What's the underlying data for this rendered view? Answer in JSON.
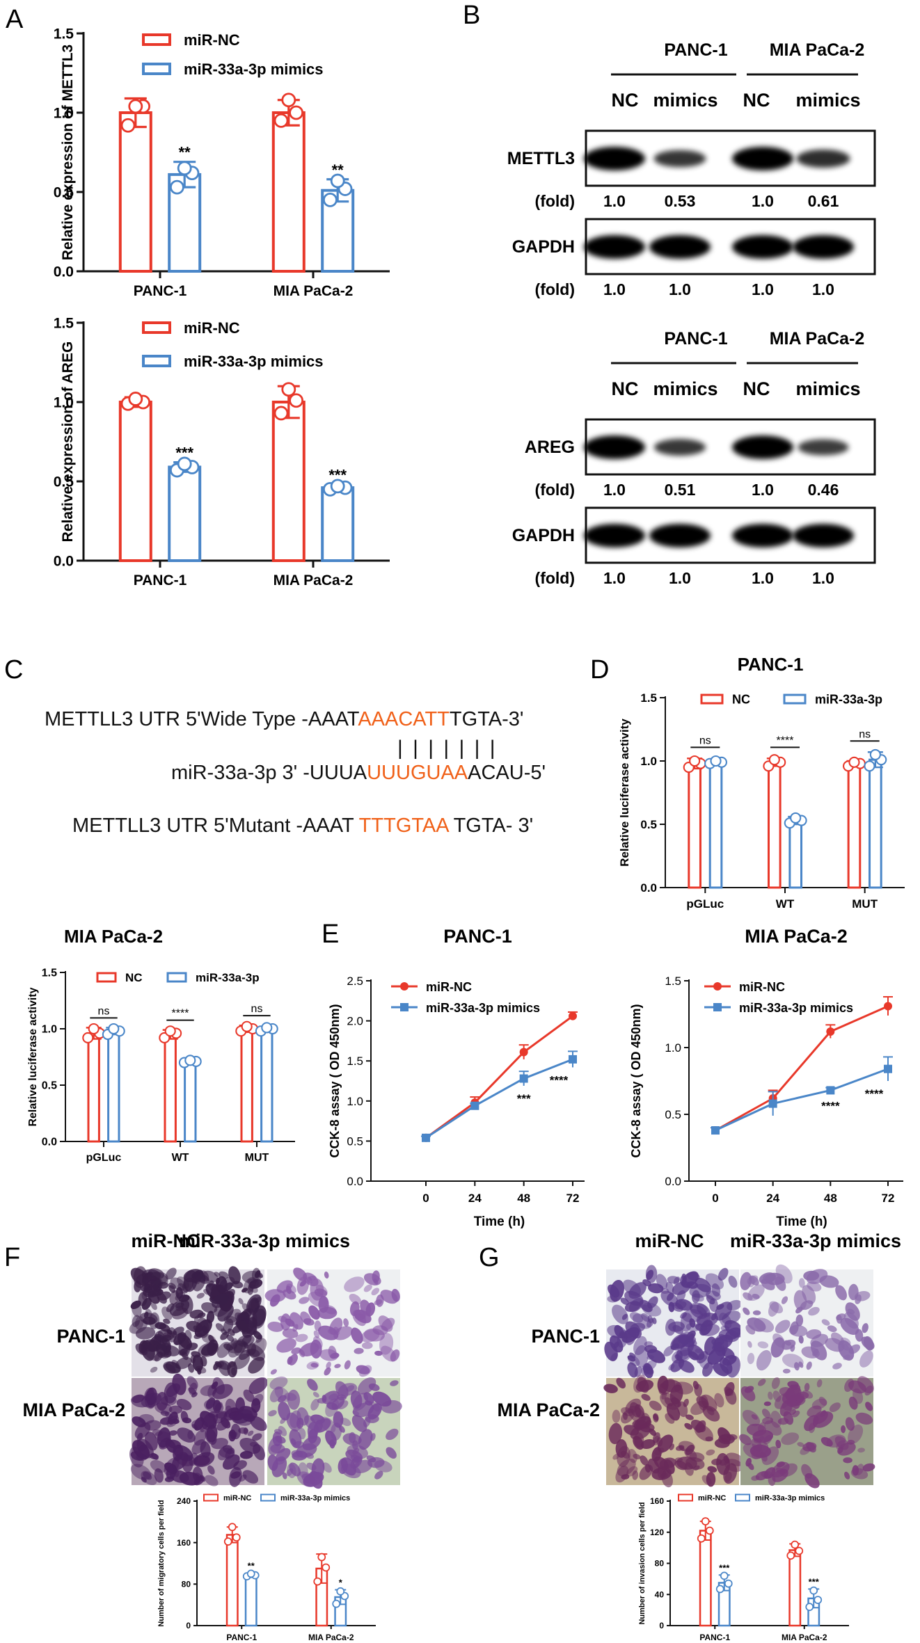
{
  "colors": {
    "nc": "#e8382a",
    "mimic": "#4a86c8",
    "text": "#111111",
    "orange": "#f06018",
    "axis": "#111111"
  },
  "panels": {
    "A": "A",
    "B": "B",
    "C": "C",
    "D": "D",
    "E": "E",
    "F": "F",
    "G": "G"
  },
  "panel_a": {
    "legend": [
      "miR-NC",
      "miR-33a-3p mimics"
    ],
    "chart_data": [
      {
        "type": "bar",
        "ylabel": "Relative expression of METTL3",
        "ylim": [
          0,
          1.5
        ],
        "yticks": [
          "0.0",
          "0.5",
          "1.0",
          "1.5"
        ],
        "categories": [
          "PANC-1",
          "MIA PaCa-2"
        ],
        "series": [
          {
            "name": "miR-NC",
            "values": [
              1.0,
              1.0
            ],
            "errors": [
              0.09,
              0.08
            ],
            "points": [
              [
                0.92,
                1.04,
                1.04
              ],
              [
                0.95,
                1.0,
                1.08
              ]
            ]
          },
          {
            "name": "miR-33a-3p mimics",
            "values": [
              0.61,
              0.51
            ],
            "errors": [
              0.08,
              0.07
            ],
            "points": [
              [
                0.53,
                0.62,
                0.65
              ],
              [
                0.45,
                0.52,
                0.57
              ]
            ]
          }
        ],
        "sig": [
          "**",
          "**"
        ]
      },
      {
        "type": "bar",
        "ylabel": "Relative expression of AREG",
        "ylim": [
          0,
          1.5
        ],
        "yticks": [
          "0.0",
          "0.5",
          "1.0",
          "1.5"
        ],
        "categories": [
          "PANC-1",
          "MIA PaCa-2"
        ],
        "series": [
          {
            "name": "miR-NC",
            "values": [
              1.0,
              1.0
            ],
            "errors": [
              0.03,
              0.1
            ],
            "points": [
              [
                0.99,
                1.0,
                1.02
              ],
              [
                0.93,
                1.01,
                1.08
              ]
            ]
          },
          {
            "name": "miR-33a-3p mimics",
            "values": [
              0.59,
              0.46
            ],
            "errors": [
              0.03,
              0.02
            ],
            "points": [
              [
                0.57,
                0.59,
                0.61
              ],
              [
                0.45,
                0.46,
                0.47
              ]
            ]
          }
        ],
        "sig": [
          "***",
          "***"
        ]
      }
    ]
  },
  "panel_b": {
    "blots": [
      {
        "cells": [
          "PANC-1",
          "MIA PaCa-2"
        ],
        "lanes": [
          "NC",
          "mimics",
          "NC",
          "mimics"
        ],
        "rows": [
          {
            "label": "METTL3",
            "fold_label": "(fold)",
            "fold": [
              "1.0",
              "0.53",
              "1.0",
              "0.61"
            ]
          },
          {
            "label": "GAPDH",
            "fold_label": "(fold)",
            "fold": [
              "1.0",
              "1.0",
              "1.0",
              "1.0"
            ]
          }
        ]
      },
      {
        "cells": [
          "PANC-1",
          "MIA PaCa-2"
        ],
        "lanes": [
          "NC",
          "mimics",
          "NC",
          "mimics"
        ],
        "rows": [
          {
            "label": "AREG",
            "fold_label": "(fold)",
            "fold": [
              "1.0",
              "0.51",
              "1.0",
              "0.46"
            ]
          },
          {
            "label": "GAPDH",
            "fold_label": "(fold)",
            "fold": [
              "1.0",
              "1.0",
              "1.0",
              "1.0"
            ]
          }
        ]
      }
    ]
  },
  "panel_c": {
    "wt": {
      "prefix": "METTLL3 UTR 5'Wide Type -AAAT",
      "highlight": "AAACATT",
      "suffix": "TGTA-3'"
    },
    "mir": {
      "prefix": "miR-33a-3p 3' -UUUA",
      "highlight": "UUUGUAA",
      "suffix": "ACAU-5'"
    },
    "mut": {
      "prefix": "METTLL3 UTR 5'Mutant -AAAT ",
      "highlight": "TTTGTAA",
      "suffix": " TGTA- 3'"
    },
    "pairs": "| | | | | | |"
  },
  "luciferase": [
    {
      "title": "PANC-1",
      "legend": [
        "NC",
        "miR-33a-3p"
      ],
      "chart_data": {
        "type": "bar",
        "ylabel": "Relative luciferase activity",
        "ylim": [
          0,
          1.5
        ],
        "yticks": [
          "0.0",
          "0.5",
          "1.0",
          "1.5"
        ],
        "categories": [
          "pGLuc",
          "WT",
          "MUT"
        ],
        "series": [
          {
            "name": "NC",
            "values": [
              0.98,
              0.99,
              0.98
            ],
            "errors": [
              0.04,
              0.03,
              0.02
            ],
            "points": [
              [
                0.95,
                0.98,
                1.0
              ],
              [
                0.96,
                0.99,
                1.01
              ],
              [
                0.96,
                0.98,
                0.99
              ]
            ]
          },
          {
            "name": "miR-33a-3p",
            "values": [
              0.99,
              0.53,
              1.01
            ],
            "errors": [
              0.02,
              0.03,
              0.06
            ],
            "points": [
              [
                0.98,
                0.99,
                1.0
              ],
              [
                0.51,
                0.53,
                0.55
              ],
              [
                0.96,
                1.01,
                1.05
              ]
            ]
          }
        ],
        "sig": [
          "ns",
          "****",
          "ns"
        ]
      }
    },
    {
      "title": "MIA PaCa-2",
      "legend": [
        "NC",
        "miR-33a-3p"
      ],
      "chart_data": {
        "type": "bar",
        "ylabel": "Relative luciferase activity",
        "ylim": [
          0,
          1.5
        ],
        "yticks": [
          "0.0",
          "0.5",
          "1.0",
          "1.5"
        ],
        "categories": [
          "pGLuc",
          "WT",
          "MUT"
        ],
        "series": [
          {
            "name": "NC",
            "values": [
              0.96,
              0.95,
              1.0
            ],
            "errors": [
              0.05,
              0.04,
              0.03
            ],
            "points": [
              [
                0.92,
                0.96,
                1.0
              ],
              [
                0.92,
                0.96,
                0.98
              ],
              [
                0.98,
                1.0,
                1.02
              ]
            ]
          },
          {
            "name": "miR-33a-3p",
            "values": [
              0.98,
              0.71,
              1.0
            ],
            "errors": [
              0.03,
              0.02,
              0.02
            ],
            "points": [
              [
                0.95,
                0.98,
                1.0
              ],
              [
                0.7,
                0.71,
                0.72
              ],
              [
                0.98,
                1.0,
                1.01
              ]
            ]
          }
        ],
        "sig": [
          "ns",
          "****",
          "ns"
        ]
      }
    }
  ],
  "cck8": [
    {
      "title": "PANC-1",
      "legend": [
        "miR-NC",
        "miR-33a-3p mimics"
      ],
      "chart_data": {
        "type": "line",
        "xlabel": "Time (h)",
        "ylabel": "CCK-8 assay ( OD 450nm)",
        "x": [
          0,
          24,
          48,
          72
        ],
        "xticks": [
          "0",
          "24",
          "48",
          "72"
        ],
        "ylim": [
          0,
          2.5
        ],
        "yticks": [
          "0.0",
          "0.5",
          "1.0",
          "1.5",
          "2.0",
          "2.5"
        ],
        "series": [
          {
            "name": "miR-NC",
            "values": [
              0.54,
              0.98,
              1.61,
              2.06
            ],
            "errors": [
              0.02,
              0.07,
              0.09,
              0.05
            ]
          },
          {
            "name": "miR-33a-3p mimics",
            "values": [
              0.54,
              0.94,
              1.28,
              1.52
            ],
            "errors": [
              0.02,
              0.03,
              0.09,
              0.1
            ]
          }
        ],
        "sig": [
          "",
          "",
          "***",
          "****"
        ]
      }
    },
    {
      "title": "MIA PaCa-2",
      "legend": [
        "miR-NC",
        "miR-33a-3p mimics"
      ],
      "chart_data": {
        "type": "line",
        "xlabel": "Time (h)",
        "ylabel": "CCK-8 assay ( OD 450nm)",
        "x": [
          0,
          24,
          48,
          72
        ],
        "xticks": [
          "0",
          "24",
          "48",
          "72"
        ],
        "ylim": [
          0,
          1.5
        ],
        "yticks": [
          "0.0",
          "0.5",
          "1.0",
          "1.5"
        ],
        "series": [
          {
            "name": "miR-NC",
            "values": [
              0.38,
              0.62,
              1.12,
              1.31
            ],
            "errors": [
              0.02,
              0.06,
              0.05,
              0.07
            ]
          },
          {
            "name": "miR-33a-3p mimics",
            "values": [
              0.38,
              0.58,
              0.68,
              0.84
            ],
            "errors": [
              0.02,
              0.09,
              0.02,
              0.09
            ]
          }
        ],
        "sig": [
          "",
          "",
          "****",
          "****"
        ]
      }
    }
  ],
  "transwell": [
    {
      "columns": [
        "miR-NC",
        "miR-33a-3p mimics"
      ],
      "rows": [
        "PANC-1",
        "MIA PaCa-2"
      ],
      "legend": [
        "miR-NC",
        "miR-33a-3p mimics"
      ],
      "chart_data": {
        "type": "bar",
        "ylabel": "Number of migratory cells per field",
        "ylim": [
          0,
          240
        ],
        "yticks": [
          "0",
          "80",
          "160",
          "240"
        ],
        "categories": [
          "PANC-1",
          "MIA PaCa-2"
        ],
        "series": [
          {
            "name": "miR-NC",
            "values": [
              175,
              110
            ],
            "errors": [
              15,
              28
            ],
            "points": [
              [
                162,
                170,
                190
              ],
              [
                85,
                112,
                132
              ]
            ]
          },
          {
            "name": "miR-33a-3p mimics",
            "values": [
              97,
              55
            ],
            "errors": [
              4,
              14
            ],
            "points": [
              [
                95,
                97,
                100
              ],
              [
                42,
                57,
                66
              ]
            ]
          }
        ],
        "sig": [
          "**",
          "*"
        ]
      }
    },
    {
      "columns": [
        "miR-NC",
        "miR-33a-3p mimics"
      ],
      "rows": [
        "PANC-1",
        "MIA PaCa-2"
      ],
      "legend": [
        "miR-NC",
        "miR-33a-3p mimics"
      ],
      "chart_data": {
        "type": "bar",
        "ylabel": "Number of invasion cells per field",
        "ylim": [
          0,
          160
        ],
        "yticks": [
          "0",
          "40",
          "80",
          "120",
          "160"
        ],
        "categories": [
          "PANC-1",
          "MIA PaCa-2"
        ],
        "series": [
          {
            "name": "miR-NC",
            "values": [
              122,
              97
            ],
            "errors": [
              12,
              8
            ],
            "points": [
              [
                112,
                122,
                134
              ],
              [
                90,
                96,
                104
              ]
            ]
          },
          {
            "name": "miR-33a-3p mimics",
            "values": [
              55,
              35
            ],
            "errors": [
              10,
              12
            ],
            "points": [
              [
                47,
                54,
                64
              ],
              [
                24,
                33,
                45
              ]
            ]
          }
        ],
        "sig": [
          "***",
          "***"
        ]
      }
    }
  ]
}
